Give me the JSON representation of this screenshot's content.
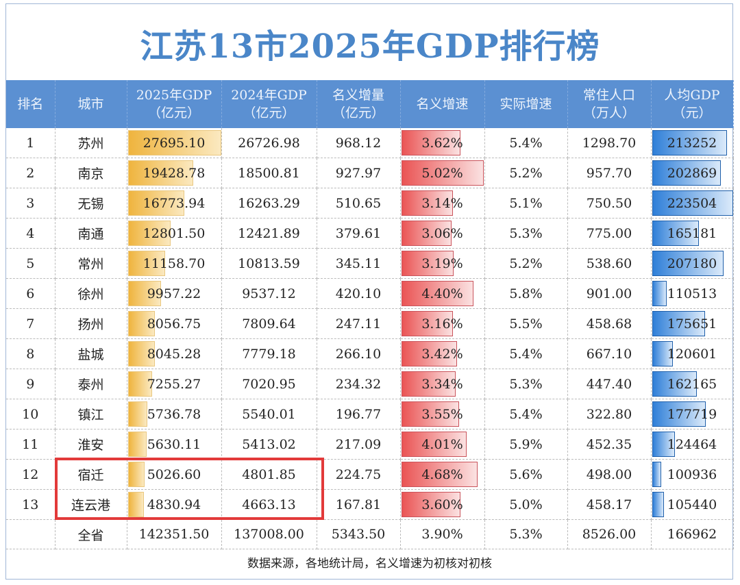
{
  "title": "江苏13市2025年GDP排行榜",
  "headers": [
    "排名",
    "城市",
    "2025年GDP\n（亿元）",
    "2024年GDP\n（亿元）",
    "名义增量\n（亿元）",
    "名义增速",
    "实际增速",
    "常住人口\n（万人）",
    "人均GDP\n（元）"
  ],
  "rows": [
    [
      "1",
      "苏州",
      "27695.10",
      "26726.98",
      "968.12",
      "3.62%",
      "5.4%",
      "1298.70",
      "213252"
    ],
    [
      "2",
      "南京",
      "19428.78",
      "18500.81",
      "927.97",
      "5.02%",
      "5.2%",
      "957.70",
      "202869"
    ],
    [
      "3",
      "无锡",
      "16773.94",
      "16263.29",
      "510.65",
      "3.14%",
      "5.1%",
      "750.50",
      "223504"
    ],
    [
      "4",
      "南通",
      "12801.50",
      "12421.89",
      "379.61",
      "3.06%",
      "5.3%",
      "775.00",
      "165181"
    ],
    [
      "5",
      "常州",
      "11158.70",
      "10813.59",
      "345.11",
      "3.19%",
      "5.2%",
      "538.60",
      "207180"
    ],
    [
      "6",
      "徐州",
      "9957.22",
      "9537.12",
      "420.10",
      "4.40%",
      "5.8%",
      "901.00",
      "110513"
    ],
    [
      "7",
      "扬州",
      "8056.75",
      "7809.64",
      "247.11",
      "3.16%",
      "5.5%",
      "458.68",
      "175651"
    ],
    [
      "8",
      "盐城",
      "8045.28",
      "7779.18",
      "266.10",
      "3.42%",
      "5.4%",
      "667.10",
      "120601"
    ],
    [
      "9",
      "泰州",
      "7255.27",
      "7020.95",
      "234.32",
      "3.34%",
      "5.3%",
      "447.40",
      "162165"
    ],
    [
      "10",
      "镇江",
      "5736.78",
      "5540.01",
      "196.77",
      "3.55%",
      "5.4%",
      "322.80",
      "177719"
    ],
    [
      "11",
      "淮安",
      "5630.11",
      "5413.02",
      "217.09",
      "4.01%",
      "5.9%",
      "452.35",
      "124464"
    ],
    [
      "12",
      "宿迁",
      "5026.60",
      "4801.85",
      "224.75",
      "4.68%",
      "5.6%",
      "498.00",
      "100936"
    ],
    [
      "13",
      "连云港",
      "4830.94",
      "4663.13",
      "167.81",
      "3.60%",
      "5.0%",
      "458.17",
      "105440"
    ]
  ],
  "total": [
    "",
    "全省",
    "142351.50",
    "137008.00",
    "5343.50",
    "3.90%",
    "5.3%",
    "8526.00",
    "166962"
  ],
  "highlighted_rows": [
    "宿迁",
    "连云港"
  ],
  "footer": "数据来源，各地统计局，名义增速为初核对初核",
  "colors": {
    "header": "#5b90d2",
    "title": "#4a86c8",
    "gdp_bar": "#efb43e",
    "growth_bar": "#ea5454",
    "per_capita_bar": "#2f7fd8",
    "highlight": "#e23a3a"
  }
}
